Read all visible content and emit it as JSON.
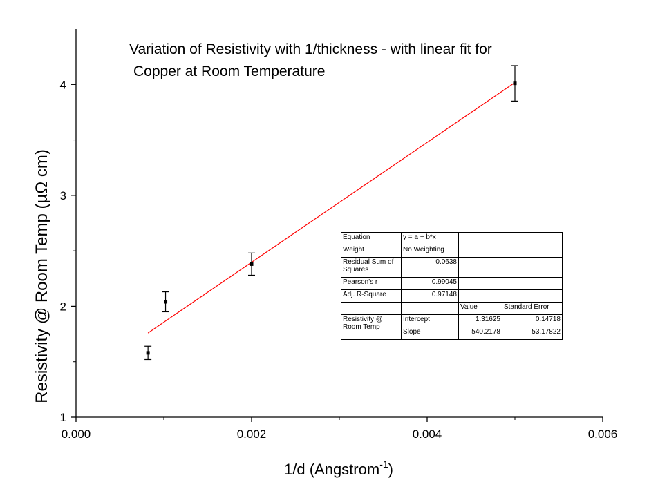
{
  "chart_data": {
    "type": "scatter",
    "title_lines": [
      "Variation of Resistivity with 1/thickness - with linear fit for",
      "Copper at Room Temperature"
    ],
    "xlabel_main": "1/d (Angstrom",
    "xlabel_sup": "-1",
    "xlabel_end": ")",
    "ylabel": "Resistivity @ Room Temp (µΩ cm)",
    "xlim": [
      0,
      0.006
    ],
    "ylim": [
      1,
      4.5
    ],
    "x_ticks": [
      0,
      0.002,
      0.004,
      0.006
    ],
    "x_tick_labels": [
      "0.000",
      "0.002",
      "0.004",
      "0.006"
    ],
    "y_ticks": [
      1,
      2,
      3,
      4
    ],
    "y_tick_labels": [
      "1",
      "2",
      "3",
      "4"
    ],
    "series": [
      {
        "points": [
          {
            "x": 0.00082,
            "y": 1.58,
            "err": 0.06
          },
          {
            "x": 0.00102,
            "y": 2.04,
            "err": 0.09
          },
          {
            "x": 0.002,
            "y": 2.38,
            "err": 0.1
          },
          {
            "x": 0.005,
            "y": 4.01,
            "err": 0.16
          }
        ],
        "color": "#000000"
      }
    ],
    "fit": {
      "x_range": [
        0.00082,
        0.005
      ],
      "intercept": 1.31625,
      "slope": 540.2178,
      "color": "#ff0000"
    }
  },
  "fit_table": {
    "equation_label": "Equation",
    "equation_value": "y = a + b*x",
    "weight_label": "Weight",
    "weight_value": "No Weighting",
    "rss_label": "Residual Sum of Squares",
    "rss_value": "0.0638",
    "pearson_label": "Pearson's r",
    "pearson_value": "0.99045",
    "adjr_label": "Adj. R-Square",
    "adjr_value": "0.97148",
    "value_header": "Value",
    "stderr_header": "Standard Error",
    "param_group": "Resistivity @ Room Temp",
    "intercept_label": "Intercept",
    "intercept_value": "1.31625",
    "intercept_error": "0.14718",
    "slope_label": "Slope",
    "slope_value": "540.2178",
    "slope_error": "53.17822"
  }
}
